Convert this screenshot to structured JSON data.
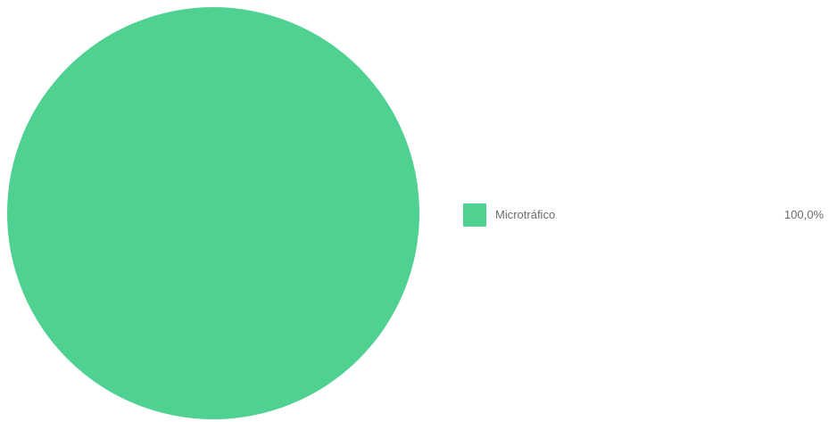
{
  "chart_data": {
    "type": "pie",
    "categories": [
      "Microtráfico"
    ],
    "values": [
      100.0
    ],
    "value_labels": [
      "100,0%"
    ],
    "colors": [
      "#4fd192"
    ],
    "legend_position": "right"
  }
}
